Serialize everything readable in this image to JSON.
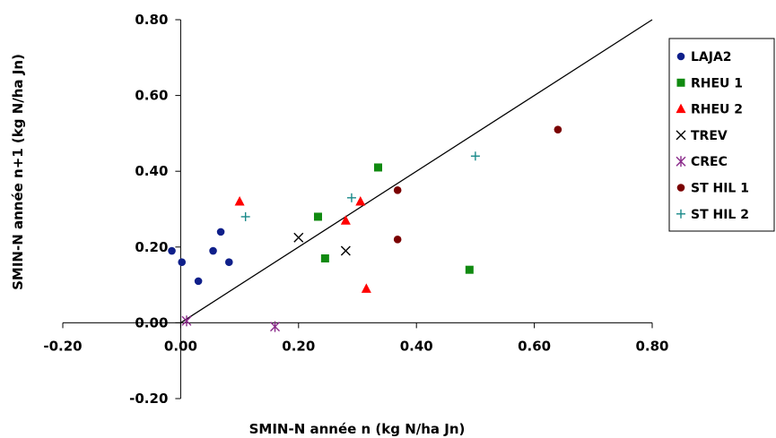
{
  "chart_data": {
    "type": "scatter",
    "title": "",
    "xlabel": "SMIN-N année n (kg N/ha Jn)",
    "ylabel": "SMIN-N année n+1 (kg N/ha Jn)",
    "xlim": [
      -0.2,
      0.8
    ],
    "ylim": [
      -0.2,
      0.8
    ],
    "x_ticks": [
      "-0.20",
      "0.00",
      "0.20",
      "0.40",
      "0.60",
      "0.80"
    ],
    "y_ticks": [
      "-0.20",
      "0.00",
      "0.20",
      "0.40",
      "0.60",
      "0.80"
    ],
    "grid": false,
    "legend_position": "right",
    "reference_line": {
      "x": [
        0.0,
        0.8
      ],
      "y": [
        0.0,
        0.8
      ],
      "color": "#000000"
    },
    "series": [
      {
        "name": "LAJA2",
        "marker": "circle",
        "color": "#0f1f8a",
        "x": [
          -0.015,
          0.002,
          0.03,
          0.055,
          0.068,
          0.082
        ],
        "y": [
          0.19,
          0.16,
          0.11,
          0.19,
          0.24,
          0.16
        ]
      },
      {
        "name": "RHEU 1",
        "marker": "square",
        "color": "#108a10",
        "x": [
          0.233,
          0.245,
          0.335,
          0.49
        ],
        "y": [
          0.28,
          0.17,
          0.41,
          0.14
        ]
      },
      {
        "name": "RHEU 2",
        "marker": "triangle",
        "color": "#ff0000",
        "x": [
          0.1,
          0.28,
          0.305,
          0.315
        ],
        "y": [
          0.32,
          0.27,
          0.32,
          0.09
        ]
      },
      {
        "name": "TREV",
        "marker": "x",
        "color": "#000000",
        "x": [
          0.2,
          0.28
        ],
        "y": [
          0.225,
          0.19
        ]
      },
      {
        "name": "CREC",
        "marker": "star",
        "color": "#8a2a8a",
        "x": [
          0.01,
          0.16
        ],
        "y": [
          0.005,
          -0.01
        ]
      },
      {
        "name": "ST HIL 1",
        "marker": "circle",
        "color": "#7a0000",
        "x": [
          0.368,
          0.368,
          0.64
        ],
        "y": [
          0.35,
          0.22,
          0.51
        ]
      },
      {
        "name": "ST HIL 2",
        "marker": "plus",
        "color": "#1a8a8a",
        "x": [
          0.11,
          0.29,
          0.5
        ],
        "y": [
          0.28,
          0.33,
          0.44
        ]
      }
    ]
  }
}
